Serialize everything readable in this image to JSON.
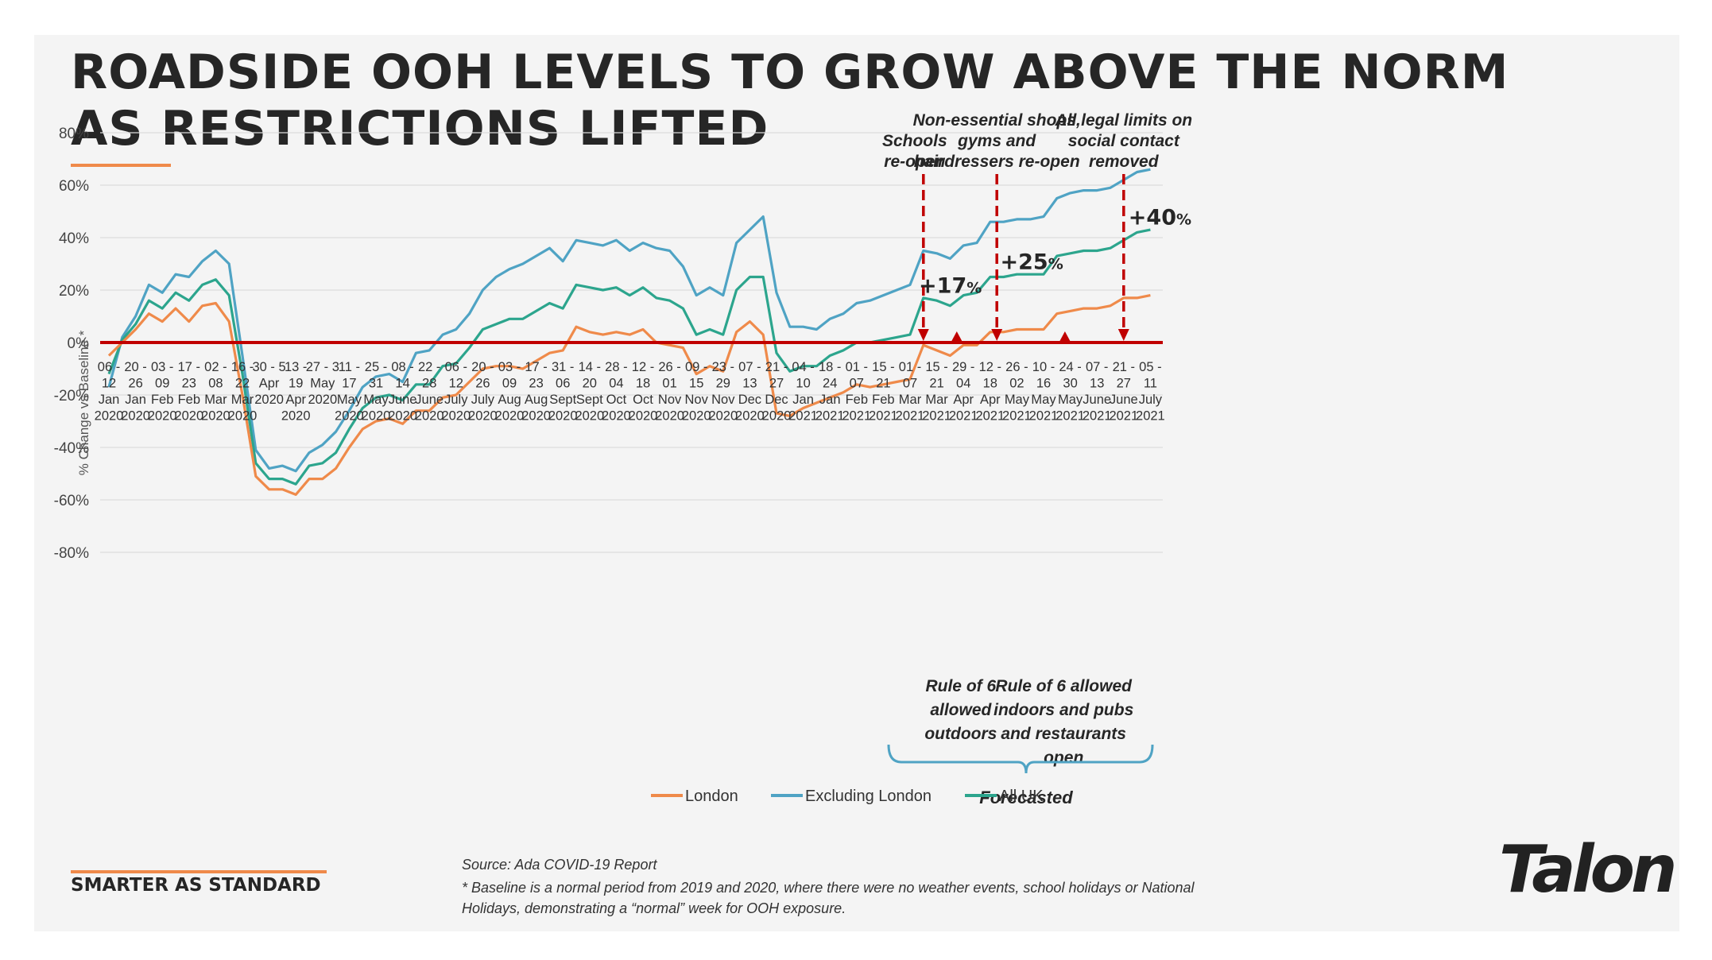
{
  "header": {
    "title": "ROADSIDE OOH LEVELS TO GROW ABOVE THE NORM AS RESTRICTIONS LIFTED"
  },
  "footer": {
    "tagline": "SMARTER AS STANDARD",
    "source": "Source: Ada COVID-19 Report",
    "footnote": "* Baseline is a normal period from 2019 and 2020, where there were no weather events, school holidays or National Holidays, demonstrating a “normal” week for OOH exposure.",
    "logo": "Talon"
  },
  "colors": {
    "london": "#ef8a4a",
    "excluding_london": "#4fa3c4",
    "all_uk": "#2ca58d",
    "baseline": "#c00000",
    "accent": "#ef8a4a",
    "brace": "#4fa3c4"
  },
  "chart_data": {
    "type": "line",
    "title": "",
    "xlabel": "",
    "ylabel": "% Change vs Baseline *",
    "ylim": [
      -80,
      80
    ],
    "yticks": [
      -80,
      -60,
      -40,
      -20,
      0,
      20,
      40,
      60,
      80
    ],
    "ytick_labels": [
      "-80%",
      "-60%",
      "-40%",
      "-20%",
      "0%",
      "20%",
      "40%",
      "60%",
      "80%"
    ],
    "grid": true,
    "legend_position": "bottom-center",
    "categories": [
      [
        "06 -",
        "12",
        "Jan",
        "2020"
      ],
      [
        "20 -",
        "26",
        "Jan",
        "2020"
      ],
      [
        "03 -",
        "09",
        "Feb",
        "2020"
      ],
      [
        "17 -",
        "23",
        "Feb",
        "2020"
      ],
      [
        "02 -",
        "08",
        "Mar",
        "2020"
      ],
      [
        "16 -",
        "22",
        "Mar",
        "2020"
      ],
      [
        "30 - 5",
        "Apr",
        "2020",
        ""
      ],
      [
        "13 -",
        "19",
        "Apr",
        "2020"
      ],
      [
        "27 - 3",
        "May",
        "2020",
        ""
      ],
      [
        "11 -",
        "17",
        "May",
        "2020"
      ],
      [
        "25 -",
        "31",
        "May",
        "2020"
      ],
      [
        "08 -",
        "14",
        "June",
        "2020"
      ],
      [
        "22 -",
        "28",
        "June",
        "2020"
      ],
      [
        "06 -",
        "12",
        "July",
        "2020"
      ],
      [
        "20 -",
        "26",
        "July",
        "2020"
      ],
      [
        "03 -",
        "09",
        "Aug",
        "2020"
      ],
      [
        "17 -",
        "23",
        "Aug",
        "2020"
      ],
      [
        "31 -",
        "06",
        "Sept",
        "2020"
      ],
      [
        "14 -",
        "20",
        "Sept",
        "2020"
      ],
      [
        "28 -",
        "04",
        "Oct",
        "2020"
      ],
      [
        "12 -",
        "18",
        "Oct",
        "2020"
      ],
      [
        "26 -",
        "01",
        "Nov",
        "2020"
      ],
      [
        "09 -",
        "15",
        "Nov",
        "2020"
      ],
      [
        "23 -",
        "29",
        "Nov",
        "2020"
      ],
      [
        "07 -",
        "13",
        "Dec",
        "2020"
      ],
      [
        "21 -",
        "27",
        "Dec",
        "2020"
      ],
      [
        "04 -",
        "10",
        "Jan",
        "2021"
      ],
      [
        "18 -",
        "24",
        "Jan",
        "2021"
      ],
      [
        "01 -",
        "07",
        "Feb",
        "2021"
      ],
      [
        "15 -",
        "21",
        "Feb",
        "2021"
      ],
      [
        "01 -",
        "07",
        "Mar",
        "2021"
      ],
      [
        "15 -",
        "21",
        "Mar",
        "2021"
      ],
      [
        "29 -",
        "04",
        "Apr",
        "2021"
      ],
      [
        "12 -",
        "18",
        "Apr",
        "2021"
      ],
      [
        "26 -",
        "02",
        "May",
        "2021"
      ],
      [
        "10 -",
        "16",
        "May",
        "2021"
      ],
      [
        "24 -",
        "30",
        "May",
        "2021"
      ],
      [
        "07 -",
        "13",
        "June",
        "2021"
      ],
      [
        "21 -",
        "27",
        "June",
        "2021"
      ],
      [
        "05 -",
        "11",
        "July",
        "2021"
      ]
    ],
    "x": [
      0,
      0.5,
      1,
      1.5,
      2,
      2.5,
      3,
      3.5,
      4,
      4.5,
      5,
      5.5,
      6,
      6.5,
      7,
      7.5,
      8,
      8.5,
      9,
      9.5,
      10,
      10.5,
      11,
      11.5,
      12,
      12.5,
      13,
      13.5,
      14,
      14.5,
      15,
      15.5,
      16,
      16.5,
      17,
      17.5,
      18,
      18.5,
      19,
      19.5,
      20,
      20.5,
      21,
      21.5,
      22,
      22.5,
      23,
      23.5,
      24,
      24.5,
      25,
      25.5,
      26,
      26.5,
      27,
      27.5,
      28,
      28.5,
      29,
      29.5,
      30,
      30.5,
      31,
      31.5,
      32,
      32.5,
      33,
      33.5,
      34,
      34.5,
      35,
      35.5,
      36,
      36.5,
      37,
      37.5,
      38,
      38.5,
      39
    ],
    "series": [
      {
        "name": "London",
        "values": [
          -5,
          0,
          5,
          11,
          8,
          13,
          8,
          14,
          15,
          8,
          -20,
          -51,
          -56,
          -56,
          -58,
          -52,
          -52,
          -48,
          -40,
          -33,
          -30,
          -29,
          -31,
          -26,
          -26,
          -21,
          -20,
          -15,
          -10,
          -9,
          -9,
          -10,
          -7,
          -4,
          -3,
          6,
          4,
          3,
          4,
          3,
          5,
          0,
          -1,
          -2,
          -12,
          -9,
          -11,
          4,
          8,
          3,
          -27,
          -28,
          -25,
          -23,
          -21,
          -19,
          -16,
          -17,
          -16,
          -15,
          -14,
          -1,
          -3,
          -5,
          -1,
          -1,
          4,
          4,
          5,
          5,
          5,
          11,
          12,
          13,
          13,
          14,
          17,
          17,
          18
        ]
      },
      {
        "name": "Excluding London",
        "values": [
          -17,
          2,
          10,
          22,
          19,
          26,
          25,
          31,
          35,
          30,
          -5,
          -41,
          -48,
          -47,
          -49,
          -42,
          -39,
          -34,
          -26,
          -17,
          -13,
          -12,
          -15,
          -4,
          -3,
          3,
          5,
          11,
          20,
          25,
          28,
          30,
          33,
          36,
          31,
          39,
          38,
          37,
          39,
          35,
          38,
          36,
          35,
          29,
          18,
          21,
          18,
          38,
          43,
          48,
          19,
          6,
          6,
          5,
          9,
          11,
          15,
          16,
          18,
          20,
          22,
          35,
          34,
          32,
          37,
          38,
          46,
          46,
          47,
          47,
          48,
          55,
          57,
          58,
          58,
          59,
          62,
          65,
          66
        ]
      },
      {
        "name": "All UK",
        "values": [
          -12,
          1,
          7,
          16,
          13,
          19,
          16,
          22,
          24,
          18,
          -12,
          -46,
          -52,
          -52,
          -54,
          -47,
          -46,
          -42,
          -33,
          -25,
          -21,
          -20,
          -22,
          -16,
          -16,
          -9,
          -8,
          -2,
          5,
          7,
          9,
          9,
          12,
          15,
          13,
          22,
          21,
          20,
          21,
          18,
          21,
          17,
          16,
          13,
          3,
          5,
          3,
          20,
          25,
          25,
          -4,
          -11,
          -9,
          -9,
          -5,
          -3,
          0,
          0,
          1,
          2,
          3,
          17,
          16,
          14,
          18,
          19,
          25,
          25,
          26,
          26,
          26,
          33,
          34,
          35,
          35,
          36,
          39,
          42,
          43
        ]
      }
    ],
    "change_labels": [
      {
        "x": 30.15,
        "y": 22,
        "pct": "+17",
        "unit": "%"
      },
      {
        "x": 33.2,
        "y": 31,
        "pct": "+25",
        "unit": "%"
      },
      {
        "x": 38.0,
        "y": 48,
        "pct": "+40",
        "unit": "%"
      }
    ],
    "event_lines": [
      {
        "x": 30.5,
        "label": [
          "Schools",
          "re-open"
        ]
      },
      {
        "x": 33.25,
        "label": [
          "Non-essential shops,",
          "gyms and",
          "hairdressers re-open"
        ]
      },
      {
        "x": 38.0,
        "label": [
          "All legal limits on",
          "social contact",
          "removed"
        ]
      }
    ],
    "event_markers": [
      {
        "x": 31.75
      },
      {
        "x": 35.8
      }
    ],
    "bottom_annotations": [
      {
        "x": 31.9,
        "label": [
          "Rule of 6",
          "allowed",
          "outdoors"
        ]
      },
      {
        "x": 35.75,
        "label": [
          "Rule of 6 allowed",
          "indoors and pubs",
          "and restaurants",
          "open"
        ]
      }
    ],
    "forecast": {
      "x_start": 29.5,
      "x_end": 39.3,
      "label": "Forecasted"
    }
  }
}
